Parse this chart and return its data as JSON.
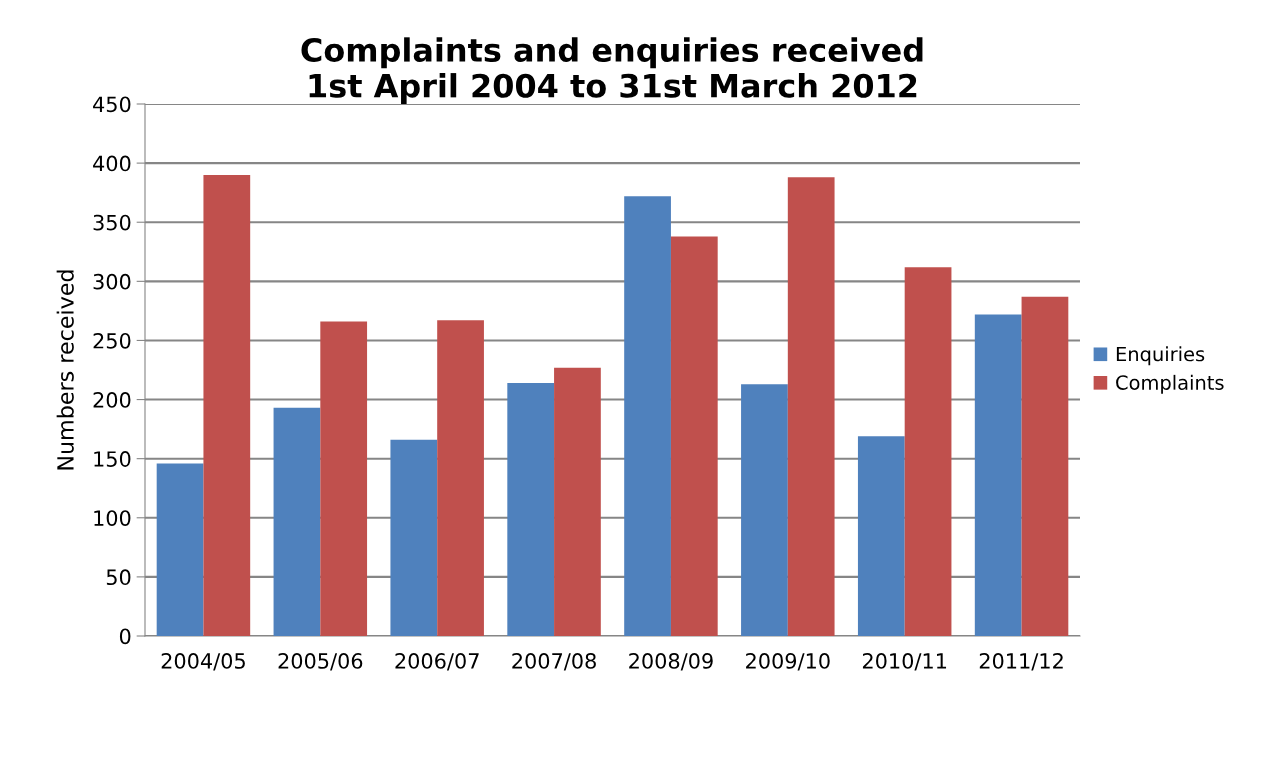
{
  "chart_data": {
    "type": "bar",
    "title": "Complaints and enquiries received\n1st April 2004 to 31st March 2012",
    "ylabel": "Numbers received",
    "categories": [
      "2004/05",
      "2005/06",
      "2006/07",
      "2007/08",
      "2008/09",
      "2009/10",
      "2010/11",
      "2011/12"
    ],
    "series": [
      {
        "name": "Enquiries",
        "color": "#4f81bd",
        "values": [
          146,
          193,
          166,
          214,
          372,
          213,
          169,
          272
        ]
      },
      {
        "name": "Complaints",
        "color": "#c0504d",
        "values": [
          390,
          266,
          267,
          227,
          338,
          388,
          312,
          287
        ]
      }
    ],
    "ylim": [
      0,
      450
    ],
    "yticks": [
      0,
      50,
      100,
      150,
      200,
      250,
      300,
      350,
      400,
      450
    ],
    "grid": "y",
    "legend": "right"
  }
}
